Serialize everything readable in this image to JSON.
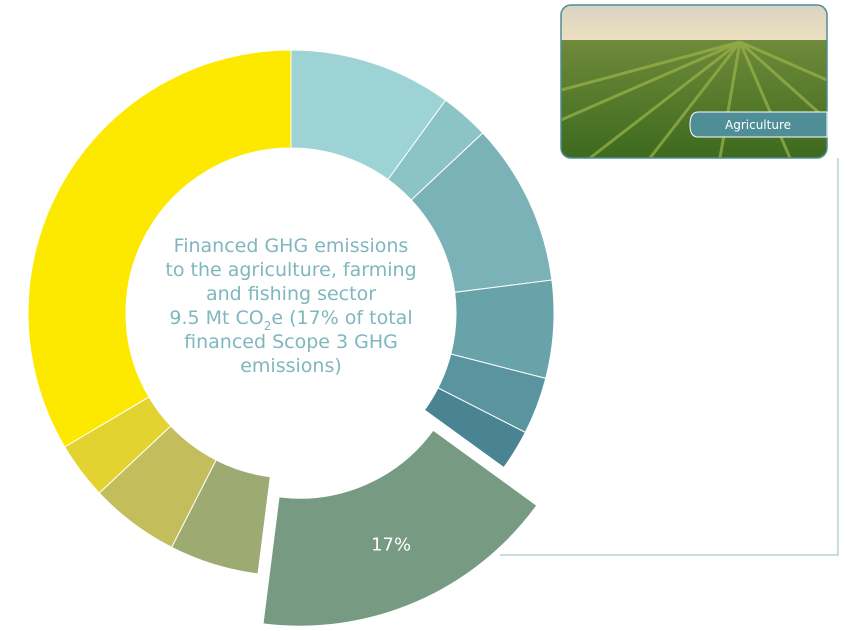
{
  "chart_data": {
    "type": "donut",
    "values": [
      10,
      3,
      10,
      6,
      3.5,
      2.5,
      17,
      5.5,
      5.5,
      3.5,
      33.5
    ],
    "colors": [
      "#9dd3d4",
      "#8cc3c5",
      "#7ab2b8",
      "#69a3aa",
      "#5a949f",
      "#4a8391",
      "#779a83",
      "#9daa72",
      "#c3bd5b",
      "#e3d330",
      "#fde900"
    ],
    "value_labels": [
      null,
      null,
      null,
      null,
      null,
      null,
      "17%",
      null,
      null,
      null,
      null
    ],
    "exploded": 6,
    "center_text": [
      "Financed GHG emissions",
      "to the agriculture, farming",
      "and fishing sector",
      [
        "9.5 Mt CO",
        "2",
        "e (17% of total"
      ],
      "financed Scope 3 GHG",
      "emissions)"
    ],
    "image_label": "Agriculture"
  }
}
